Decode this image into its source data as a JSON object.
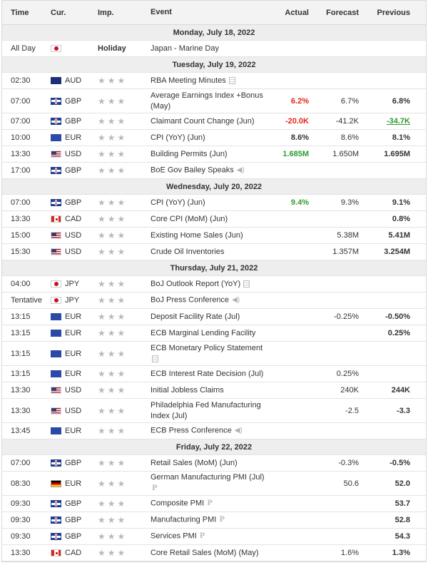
{
  "headers": {
    "time": "Time",
    "cur": "Cur.",
    "imp": "Imp.",
    "event": "Event",
    "actual": "Actual",
    "forecast": "Forecast",
    "previous": "Previous"
  },
  "rows": [
    {
      "type": "day",
      "label": "Monday, July 18, 2022"
    },
    {
      "type": "event",
      "time": "All Day",
      "flag": "jpy",
      "cur": "",
      "imp": "Holiday",
      "event": "Japan - Marine Day",
      "actual": "",
      "forecast": "",
      "previous": ""
    },
    {
      "type": "day",
      "label": "Tuesday, July 19, 2022"
    },
    {
      "type": "event",
      "time": "02:30",
      "flag": "aud",
      "cur": "AUD",
      "imp": "stars",
      "event": "RBA Meeting Minutes",
      "icon": "doc-icon",
      "actual": "",
      "forecast": "",
      "previous": ""
    },
    {
      "type": "event",
      "time": "07:00",
      "flag": "gbp",
      "cur": "GBP",
      "imp": "stars",
      "event": "Average Earnings Index +Bonus (May)",
      "actual": "6.2%",
      "actual_color": "red",
      "forecast": "6.7%",
      "previous": "6.8%",
      "tall": true
    },
    {
      "type": "event",
      "time": "07:00",
      "flag": "gbp",
      "cur": "GBP",
      "imp": "stars",
      "event": "Claimant Count Change (Jun)",
      "actual": "-20.0K",
      "actual_color": "red",
      "forecast": "-41.2K",
      "previous": "-34.7K",
      "previous_color": "green-u"
    },
    {
      "type": "event",
      "time": "10:00",
      "flag": "eur",
      "cur": "EUR",
      "imp": "stars",
      "event": "CPI (YoY) (Jun)",
      "actual": "8.6%",
      "forecast": "8.6%",
      "previous": "8.1%"
    },
    {
      "type": "event",
      "time": "13:30",
      "flag": "usd",
      "cur": "USD",
      "imp": "stars",
      "event": "Building Permits (Jun)",
      "actual": "1.685M",
      "actual_color": "green",
      "forecast": "1.650M",
      "previous": "1.695M"
    },
    {
      "type": "event",
      "time": "17:00",
      "flag": "gbp",
      "cur": "GBP",
      "imp": "stars",
      "event": "BoE Gov Bailey Speaks",
      "icon": "speaker-icon",
      "actual": "",
      "forecast": "",
      "previous": ""
    },
    {
      "type": "day",
      "label": "Wednesday, July 20, 2022"
    },
    {
      "type": "event",
      "time": "07:00",
      "flag": "gbp",
      "cur": "GBP",
      "imp": "stars",
      "event": "CPI (YoY) (Jun)",
      "actual": "9.4%",
      "actual_color": "green",
      "forecast": "9.3%",
      "previous": "9.1%"
    },
    {
      "type": "event",
      "time": "13:30",
      "flag": "cad",
      "cur": "CAD",
      "imp": "stars",
      "event": "Core CPI (MoM) (Jun)",
      "actual": "",
      "forecast": "",
      "previous": "0.8%"
    },
    {
      "type": "event",
      "time": "15:00",
      "flag": "usd",
      "cur": "USD",
      "imp": "stars",
      "event": "Existing Home Sales (Jun)",
      "actual": "",
      "forecast": "5.38M",
      "previous": "5.41M"
    },
    {
      "type": "event",
      "time": "15:30",
      "flag": "usd",
      "cur": "USD",
      "imp": "stars",
      "event": "Crude Oil Inventories",
      "actual": "",
      "forecast": "1.357M",
      "previous": "3.254M"
    },
    {
      "type": "day",
      "label": "Thursday, July 21, 2022"
    },
    {
      "type": "event",
      "time": "04:00",
      "flag": "jpy",
      "cur": "JPY",
      "imp": "stars",
      "event": "BoJ Outlook Report (YoY)",
      "icon": "doc-icon",
      "actual": "",
      "forecast": "",
      "previous": ""
    },
    {
      "type": "event",
      "time": "Tentative",
      "flag": "jpy",
      "cur": "JPY",
      "imp": "stars",
      "event": "BoJ Press Conference",
      "icon": "speaker-icon",
      "actual": "",
      "forecast": "",
      "previous": ""
    },
    {
      "type": "event",
      "time": "13:15",
      "flag": "eur",
      "cur": "EUR",
      "imp": "stars",
      "event": "Deposit Facility Rate (Jul)",
      "actual": "",
      "forecast": "-0.25%",
      "previous": "-0.50%"
    },
    {
      "type": "event",
      "time": "13:15",
      "flag": "eur",
      "cur": "EUR",
      "imp": "stars",
      "event": "ECB Marginal Lending Facility",
      "actual": "",
      "forecast": "",
      "previous": "0.25%"
    },
    {
      "type": "event",
      "time": "13:15",
      "flag": "eur",
      "cur": "EUR",
      "imp": "stars",
      "event": "ECB Monetary Policy Statement",
      "icon": "doc-icon",
      "icon_block": true,
      "actual": "",
      "forecast": "",
      "previous": "",
      "tall": true
    },
    {
      "type": "event",
      "time": "13:15",
      "flag": "eur",
      "cur": "EUR",
      "imp": "stars",
      "event": "ECB Interest Rate Decision (Jul)",
      "actual": "",
      "forecast": "0.25%",
      "previous": ""
    },
    {
      "type": "event",
      "time": "13:30",
      "flag": "usd",
      "cur": "USD",
      "imp": "stars",
      "event": "Initial Jobless Claims",
      "actual": "",
      "forecast": "240K",
      "previous": "244K"
    },
    {
      "type": "event",
      "time": "13:30",
      "flag": "usd",
      "cur": "USD",
      "imp": "stars",
      "event": "Philadelphia Fed Manufacturing Index (Jul)",
      "actual": "",
      "forecast": "-2.5",
      "previous": "-3.3",
      "tall": true
    },
    {
      "type": "event",
      "time": "13:45",
      "flag": "eur",
      "cur": "EUR",
      "imp": "stars",
      "event": "ECB Press Conference",
      "icon": "speaker-icon",
      "actual": "",
      "forecast": "",
      "previous": ""
    },
    {
      "type": "day",
      "label": "Friday, July 22, 2022"
    },
    {
      "type": "event",
      "time": "07:00",
      "flag": "gbp",
      "cur": "GBP",
      "imp": "stars",
      "event": "Retail Sales (MoM) (Jun)",
      "actual": "",
      "forecast": "-0.3%",
      "previous": "-0.5%"
    },
    {
      "type": "event",
      "time": "08:30",
      "flag": "de",
      "cur": "EUR",
      "imp": "stars",
      "event": "German Manufacturing PMI (Jul)",
      "icon": "preliminary-icon",
      "icon_block": true,
      "actual": "",
      "forecast": "50.6",
      "previous": "52.0",
      "tall": true
    },
    {
      "type": "event",
      "time": "09:30",
      "flag": "gbp",
      "cur": "GBP",
      "imp": "stars",
      "event": "Composite PMI",
      "icon": "preliminary-icon",
      "actual": "",
      "forecast": "",
      "previous": "53.7"
    },
    {
      "type": "event",
      "time": "09:30",
      "flag": "gbp",
      "cur": "GBP",
      "imp": "stars",
      "event": "Manufacturing PMI",
      "icon": "preliminary-icon",
      "actual": "",
      "forecast": "",
      "previous": "52.8"
    },
    {
      "type": "event",
      "time": "09:30",
      "flag": "gbp",
      "cur": "GBP",
      "imp": "stars",
      "event": "Services PMI",
      "icon": "preliminary-icon",
      "actual": "",
      "forecast": "",
      "previous": "54.3"
    },
    {
      "type": "event",
      "time": "13:30",
      "flag": "cad",
      "cur": "CAD",
      "imp": "stars",
      "event": "Core Retail Sales (MoM) (May)",
      "actual": "",
      "forecast": "1.6%",
      "previous": "1.3%"
    }
  ]
}
